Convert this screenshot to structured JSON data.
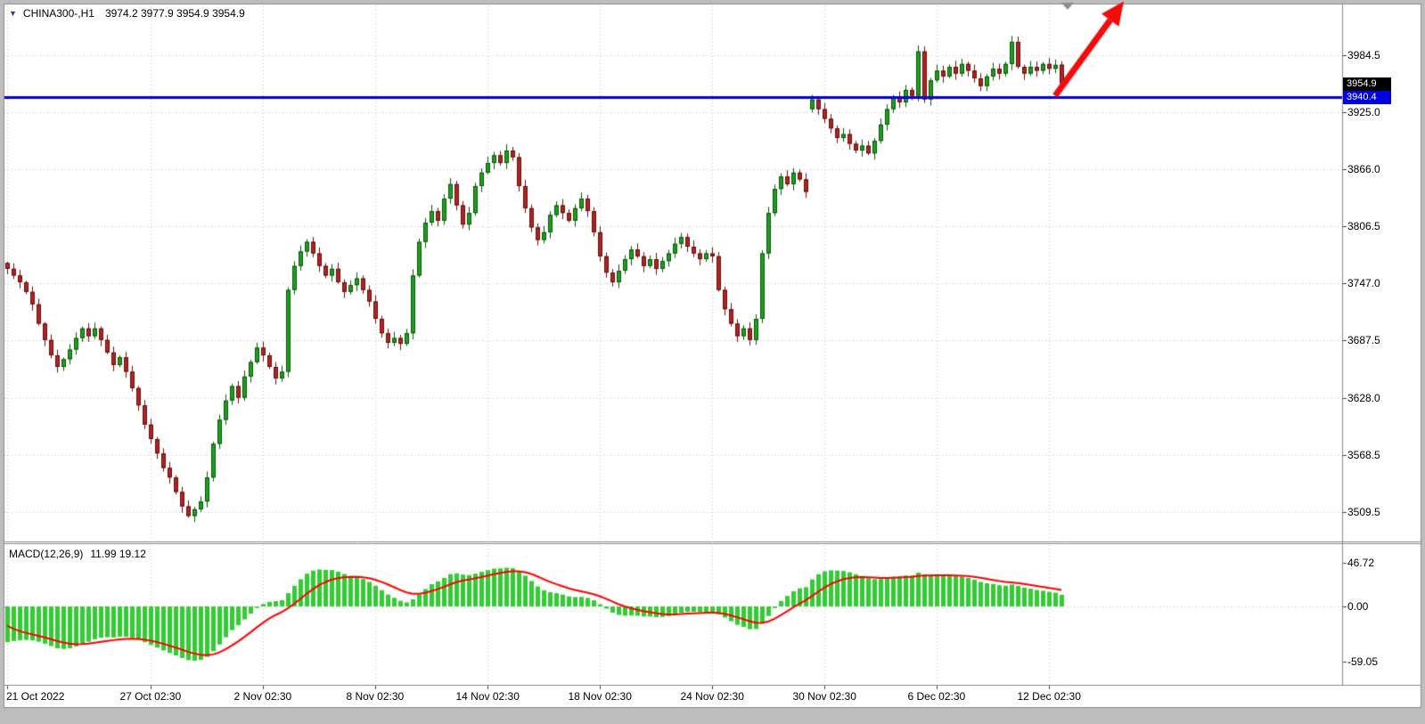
{
  "chart_header": {
    "symbol_period": "CHINA300-,H1",
    "ohlc_string": "3974.2 3977.9 3954.9 3954.9"
  },
  "indicator_header": {
    "label": "MACD(12,26,9)",
    "values": "11.99 19.12"
  },
  "price_axis": {
    "tick_labels": [
      "3984.5",
      "3925.0",
      "3866.0",
      "3806.5",
      "3747.0",
      "3687.5",
      "3628.0",
      "3568.5",
      "3509.5"
    ],
    "bid_label": "3954.9",
    "hline_label": "3940.4"
  },
  "macd_axis": {
    "tick_labels": [
      "46.72",
      "0.00",
      "-59.05"
    ]
  },
  "time_axis": {
    "labels": [
      "21 Oct 2022",
      "27 Oct 02:30",
      "2 Nov 02:30",
      "8 Nov 02:30",
      "14 Nov 02:30",
      "18 Nov 02:30",
      "24 Nov 02:30",
      "30 Nov 02:30",
      "6 Dec 02:30",
      "12 Dec 02:30"
    ]
  },
  "chart_data": {
    "type": "candlestick",
    "symbol": "CHINA300-",
    "timeframe": "H1",
    "last_ohlc": {
      "open": 3974.2,
      "high": 3977.9,
      "low": 3954.9,
      "close": 3954.9
    },
    "bid": 3954.9,
    "price_ticks": [
      3984.5,
      3925.0,
      3866.0,
      3806.5,
      3747.0,
      3687.5,
      3628.0,
      3568.5,
      3509.5
    ],
    "x_tick_labels": [
      "21 Oct 2022",
      "27 Oct 02:30",
      "2 Nov 02:30",
      "8 Nov 02:30",
      "14 Nov 02:30",
      "18 Nov 02:30",
      "24 Nov 02:30",
      "30 Nov 02:30",
      "6 Dec 02:30",
      "12 Dec 02:30"
    ],
    "x_tick_indices": [
      0,
      23,
      41,
      59,
      77,
      95,
      113,
      131,
      149,
      167
    ],
    "open_first": 3768,
    "gap_opens": {
      "129": 3928
    },
    "closes": [
      3762,
      3755,
      3748,
      3738,
      3725,
      3705,
      3688,
      3672,
      3660,
      3668,
      3678,
      3690,
      3700,
      3692,
      3700,
      3688,
      3675,
      3662,
      3670,
      3655,
      3638,
      3620,
      3600,
      3585,
      3570,
      3555,
      3545,
      3530,
      3515,
      3505,
      3512,
      3520,
      3545,
      3580,
      3605,
      3625,
      3640,
      3628,
      3650,
      3665,
      3680,
      3672,
      3660,
      3648,
      3655,
      3740,
      3765,
      3780,
      3790,
      3778,
      3765,
      3755,
      3762,
      3748,
      3738,
      3745,
      3752,
      3740,
      3728,
      3710,
      3695,
      3685,
      3690,
      3684,
      3695,
      3755,
      3790,
      3810,
      3822,
      3812,
      3835,
      3850,
      3828,
      3808,
      3820,
      3848,
      3862,
      3872,
      3880,
      3872,
      3885,
      3878,
      3848,
      3825,
      3805,
      3792,
      3800,
      3818,
      3828,
      3820,
      3812,
      3825,
      3835,
      3822,
      3800,
      3775,
      3758,
      3748,
      3760,
      3772,
      3782,
      3775,
      3765,
      3772,
      3762,
      3770,
      3778,
      3788,
      3795,
      3785,
      3778,
      3772,
      3778,
      3775,
      3740,
      3720,
      3705,
      3692,
      3700,
      3688,
      3710,
      3778,
      3820,
      3845,
      3858,
      3850,
      3862,
      3855,
      3842,
      3938,
      3928,
      3918,
      3908,
      3898,
      3902,
      3892,
      3885,
      3890,
      3882,
      3895,
      3912,
      3928,
      3940,
      3935,
      3948,
      3942,
      3988,
      3938,
      3958,
      3968,
      3962,
      3972,
      3965,
      3975,
      3968,
      3960,
      3952,
      3962,
      3970,
      3965,
      3975,
      3998,
      3972,
      3965,
      3972,
      3968,
      3975,
      3970,
      3974,
      3954.9
    ],
    "indicator": {
      "type": "MACD",
      "params": [
        12,
        26,
        9
      ],
      "main_value": 11.99,
      "signal_value": 19.12,
      "axis_ticks": [
        46.72,
        0.0,
        -59.05
      ],
      "histogram_color": "#32cd32",
      "signal_color": "#ff0000"
    },
    "annotations": [
      {
        "type": "horizontal_line",
        "price": 3940.4,
        "color": "#0000e0",
        "width": 3
      },
      {
        "type": "trend_arrow",
        "direction": "up",
        "color": "#f40b0b",
        "from": {
          "index": 168,
          "price": 3942
        },
        "to": {
          "index": 179,
          "price": 4040
        }
      },
      {
        "type": "end_of_data_marker",
        "color": "#8f8f8f",
        "index": 170
      }
    ],
    "style": {
      "up_fill": "#1da11d",
      "up_stroke": "#0a520a",
      "down_fill": "#b22222",
      "down_stroke": "#5e1010",
      "grid": "#c4c4c4",
      "background": "#ffffff",
      "frame": "#8c8c8c",
      "page_bg": "#bdbdbd",
      "bid_box": "#000000",
      "hline_box": "#0000e0"
    },
    "legend_position": "none",
    "grid": "dotted"
  }
}
